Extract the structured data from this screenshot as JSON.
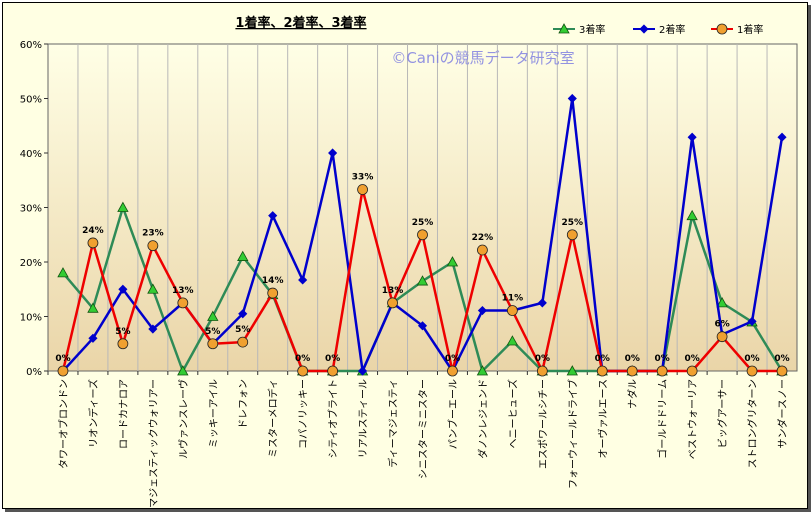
{
  "chart_data": {
    "type": "line",
    "title": "1着率、2着率、3着率",
    "watermark": "©Caniの競馬データ研究室",
    "xlabel": "",
    "ylabel": "",
    "ylim": [
      0,
      60
    ],
    "yticks": [
      "0%",
      "10%",
      "20%",
      "30%",
      "40%",
      "50%",
      "60%"
    ],
    "grid": "vertical",
    "legend_position": "top-right",
    "categories": [
      "タワーオブロンドン",
      "リオンディーズ",
      "ロードカナロア",
      "マジェスティックウォリアー",
      "ルヴァンスレーヴ",
      "ミッキーアイル",
      "ドレフォン",
      "ミスターメロディ",
      "コパノリッキー",
      "シティオブライト",
      "リアルスティール",
      "ディーマジェスティ",
      "シニスターミニスター",
      "パンブーエール",
      "ダノンレジェンド",
      "ヘニーヒューズ",
      "エスポワールシチー",
      "フォーウィールドライブ",
      "オーヴァルエース",
      "ナダル",
      "ゴールドドリーム",
      "ベストウォーリア",
      "ビッグアーサー",
      "ストロングリターン",
      "サンダースノー"
    ],
    "series": [
      {
        "name": "3着率",
        "color": "#2e8b57",
        "marker": "triangle",
        "marker_fill": "#33cc33",
        "values": [
          18,
          11.5,
          30,
          15,
          0,
          10,
          21,
          14,
          0,
          0,
          0,
          12.5,
          16.5,
          20,
          0,
          5.5,
          0,
          0,
          0,
          0,
          0,
          28.5,
          12.5,
          9,
          0
        ]
      },
      {
        "name": "2着率",
        "color": "#0000cc",
        "marker": "diamond",
        "marker_fill": "#0000cc",
        "values": [
          0,
          6,
          15,
          7.7,
          12.5,
          5,
          10.5,
          28.5,
          16.7,
          40,
          0,
          12.5,
          8.3,
          0,
          11.1,
          11.1,
          12.5,
          50,
          0,
          0,
          0,
          42.9,
          6.7,
          9.1,
          42.9
        ]
      },
      {
        "name": "1着率",
        "color": "#ee0000",
        "marker": "circle",
        "marker_fill": "#f0a030",
        "values": [
          0,
          23.5,
          5,
          23,
          12.5,
          5,
          5.3,
          14.3,
          0,
          0,
          33.3,
          12.5,
          25,
          0,
          22.2,
          11.1,
          0,
          25,
          0,
          0,
          0,
          0,
          6.3,
          0,
          0
        ],
        "labels": [
          "0%",
          "24%",
          "5%",
          "23%",
          "13%",
          "5%",
          "5%",
          "14%",
          "0%",
          "0%",
          "33%",
          "13%",
          "25%",
          "0%",
          "22%",
          "11%",
          "0%",
          "25%",
          "0%",
          "0%",
          "0%",
          "0%",
          "6%",
          "0%",
          "0%"
        ]
      }
    ]
  }
}
